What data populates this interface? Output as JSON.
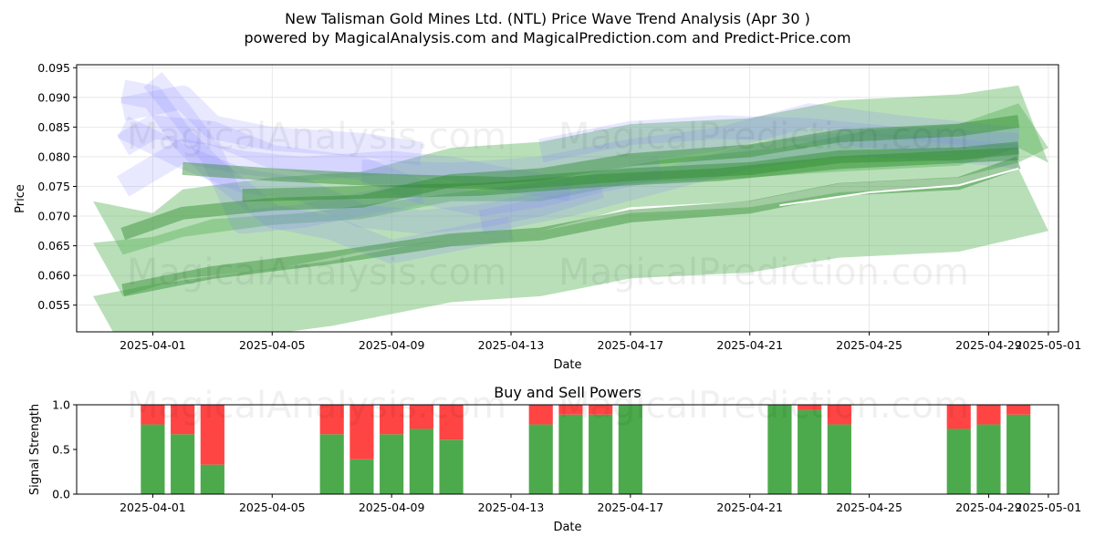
{
  "title_line1": "New Talisman Gold Mines Ltd. (NTL) Price Wave Trend Analysis (Apr 30 )",
  "title_line2": "powered by MagicalAnalysis.com and MagicalPrediction.com and Predict-Price.com",
  "watermarks": [
    "MagicalAnalysis.com",
    "MagicalPrediction.com"
  ],
  "colors": {
    "buy": "#4caa4c",
    "sell": "#ff4444",
    "trend_green": "#2e8b2e",
    "wave_blue": "#8080ff",
    "band_green": "#59b359"
  },
  "chart_data": [
    {
      "type": "area",
      "name": "price-wave-trend",
      "xlabel": "Date",
      "ylabel": "Price",
      "xlim": [
        "2025-03-30",
        "2025-05-01"
      ],
      "ylim": [
        0.0505,
        0.0955
      ],
      "xticks": [
        "2025-04-01",
        "2025-04-05",
        "2025-04-09",
        "2025-04-13",
        "2025-04-17",
        "2025-04-21",
        "2025-04-25",
        "2025-04-29",
        "2025-05-01"
      ],
      "yticks": [
        0.055,
        0.06,
        0.065,
        0.07,
        0.075,
        0.08,
        0.085,
        0.09,
        0.095
      ],
      "ytick_labels": [
        "0.055",
        "0.060",
        "0.065",
        "0.070",
        "0.075",
        "0.080",
        "0.085",
        "0.090",
        "0.095"
      ],
      "grid": true,
      "green_bands": [
        {
          "lower": [
            [
              "2025-03-30",
              0.0725
            ],
            [
              "2025-03-31",
              0.0635
            ],
            [
              "2025-04-02",
              0.0665
            ],
            [
              "2025-04-05",
              0.0685
            ],
            [
              "2025-04-08",
              0.0695
            ],
            [
              "2025-04-11",
              0.0725
            ],
            [
              "2025-04-14",
              0.0725
            ],
            [
              "2025-04-17",
              0.0755
            ],
            [
              "2025-04-21",
              0.0765
            ],
            [
              "2025-04-24",
              0.0775
            ],
            [
              "2025-04-28",
              0.0785
            ],
            [
              "2025-04-30",
              0.0815
            ]
          ],
          "upper": [
            [
              "2025-03-30",
              0.0725
            ],
            [
              "2025-04-01",
              0.0705
            ],
            [
              "2025-04-02",
              0.0745
            ],
            [
              "2025-04-05",
              0.0765
            ],
            [
              "2025-04-08",
              0.0775
            ],
            [
              "2025-04-11",
              0.0815
            ],
            [
              "2025-04-14",
              0.0825
            ],
            [
              "2025-04-17",
              0.0855
            ],
            [
              "2025-04-21",
              0.0865
            ],
            [
              "2025-04-24",
              0.0895
            ],
            [
              "2025-04-28",
              0.0905
            ],
            [
              "2025-04-30",
              0.092
            ],
            [
              "2025-05-01",
              0.079
            ]
          ]
        },
        {
          "lower": [
            [
              "2025-03-30",
              0.0655
            ],
            [
              "2025-03-31",
              0.0565
            ],
            [
              "2025-04-02",
              0.0595
            ],
            [
              "2025-04-05",
              0.061
            ],
            [
              "2025-04-08",
              0.064
            ],
            [
              "2025-04-11",
              0.066
            ],
            [
              "2025-04-14",
              0.0675
            ],
            [
              "2025-04-17",
              0.0715
            ],
            [
              "2025-04-21",
              0.0725
            ],
            [
              "2025-04-24",
              0.0755
            ],
            [
              "2025-04-28",
              0.0765
            ],
            [
              "2025-04-30",
              0.079
            ]
          ],
          "upper": [
            [
              "2025-03-30",
              0.0655
            ],
            [
              "2025-04-01",
              0.0665
            ],
            [
              "2025-04-03",
              0.0695
            ],
            [
              "2025-04-06",
              0.0705
            ],
            [
              "2025-04-09",
              0.0725
            ],
            [
              "2025-04-12",
              0.0745
            ],
            [
              "2025-04-15",
              0.0765
            ],
            [
              "2025-04-18",
              0.0795
            ],
            [
              "2025-04-22",
              0.0815
            ],
            [
              "2025-04-25",
              0.0845
            ],
            [
              "2025-04-28",
              0.0855
            ],
            [
              "2025-04-30",
              0.089
            ],
            [
              "2025-05-01",
              0.0815
            ]
          ]
        },
        {
          "lower": [
            [
              "2025-03-30",
              0.0565
            ],
            [
              "2025-03-31",
              0.0475
            ],
            [
              "2025-04-04",
              0.0495
            ],
            [
              "2025-04-07",
              0.0515
            ],
            [
              "2025-04-11",
              0.0555
            ],
            [
              "2025-04-14",
              0.0565
            ],
            [
              "2025-04-17",
              0.0595
            ],
            [
              "2025-04-21",
              0.0605
            ],
            [
              "2025-04-24",
              0.063
            ],
            [
              "2025-04-28",
              0.064
            ],
            [
              "2025-05-01",
              0.0675
            ]
          ],
          "upper": [
            [
              "2025-03-30",
              0.0565
            ],
            [
              "2025-04-01",
              0.0585
            ],
            [
              "2025-04-04",
              0.0605
            ],
            [
              "2025-04-07",
              0.0625
            ],
            [
              "2025-04-10",
              0.0655
            ],
            [
              "2025-04-14",
              0.0675
            ],
            [
              "2025-04-17",
              0.0705
            ],
            [
              "2025-04-21",
              0.0715
            ],
            [
              "2025-04-24",
              0.074
            ],
            [
              "2025-04-28",
              0.075
            ],
            [
              "2025-04-30",
              0.078
            ],
            [
              "2025-05-01",
              0.0675
            ]
          ]
        }
      ],
      "trend_lines": [
        [
          [
            "2025-03-31",
            0.067
          ],
          [
            "2025-04-02",
            0.0705
          ],
          [
            "2025-04-05",
            0.072
          ],
          [
            "2025-04-08",
            0.0725
          ],
          [
            "2025-04-11",
            0.076
          ],
          [
            "2025-04-14",
            0.077
          ],
          [
            "2025-04-17",
            0.0795
          ],
          [
            "2025-04-21",
            0.081
          ],
          [
            "2025-04-24",
            0.0835
          ],
          [
            "2025-04-28",
            0.0845
          ],
          [
            "2025-04-30",
            0.086
          ]
        ],
        [
          [
            "2025-03-31",
            0.0575
          ],
          [
            "2025-04-03",
            0.0605
          ],
          [
            "2025-04-07",
            0.063
          ],
          [
            "2025-04-11",
            0.066
          ],
          [
            "2025-04-14",
            0.067
          ],
          [
            "2025-04-17",
            0.07
          ],
          [
            "2025-04-21",
            0.0715
          ],
          [
            "2025-04-24",
            0.0745
          ],
          [
            "2025-04-28",
            0.0755
          ],
          [
            "2025-04-30",
            0.079
          ]
        ],
        [
          [
            "2025-04-02",
            0.078
          ],
          [
            "2025-04-05",
            0.077
          ],
          [
            "2025-04-09",
            0.076
          ],
          [
            "2025-04-13",
            0.0755
          ],
          [
            "2025-04-17",
            0.077
          ],
          [
            "2025-04-21",
            0.078
          ],
          [
            "2025-04-24",
            0.08
          ],
          [
            "2025-04-28",
            0.0805
          ],
          [
            "2025-04-30",
            0.0815
          ]
        ],
        [
          [
            "2025-04-04",
            0.0735
          ],
          [
            "2025-04-08",
            0.074
          ],
          [
            "2025-04-12",
            0.0745
          ],
          [
            "2025-04-16",
            0.076
          ],
          [
            "2025-04-20",
            0.077
          ],
          [
            "2025-04-24",
            0.079
          ],
          [
            "2025-04-30",
            0.0805
          ]
        ]
      ],
      "white_line": [
        [
          "2025-04-22",
          0.0718
        ],
        [
          "2025-04-25",
          0.074
        ],
        [
          "2025-04-28",
          0.0752
        ],
        [
          "2025-04-30",
          0.078
        ]
      ],
      "blue_waves": [
        [
          [
            "2025-04-01",
            0.093
          ],
          [
            "2025-04-02",
            0.087
          ],
          [
            "2025-04-03",
            0.08
          ],
          [
            "2025-04-04",
            0.069
          ],
          [
            "2025-04-06",
            0.07
          ],
          [
            "2025-04-08",
            0.072
          ],
          [
            "2025-04-10",
            0.074
          ]
        ],
        [
          [
            "2025-03-31",
            0.088
          ],
          [
            "2025-04-02",
            0.09
          ],
          [
            "2025-04-03",
            0.085
          ],
          [
            "2025-04-05",
            0.083
          ],
          [
            "2025-04-08",
            0.082
          ],
          [
            "2025-04-10",
            0.0805
          ]
        ],
        [
          [
            "2025-03-31",
            0.091
          ],
          [
            "2025-04-01",
            0.09
          ],
          [
            "2025-04-02",
            0.083
          ],
          [
            "2025-04-03",
            0.078
          ],
          [
            "2025-04-05",
            0.07
          ],
          [
            "2025-04-07",
            0.068
          ],
          [
            "2025-04-09",
            0.064
          ],
          [
            "2025-04-11",
            0.066
          ],
          [
            "2025-04-13",
            0.068
          ]
        ],
        [
          [
            "2025-03-31",
            0.075
          ],
          [
            "2025-04-01",
            0.078
          ],
          [
            "2025-04-02",
            0.081
          ],
          [
            "2025-04-04",
            0.079
          ],
          [
            "2025-04-06",
            0.078
          ],
          [
            "2025-04-09",
            0.079
          ],
          [
            "2025-04-11",
            0.078
          ],
          [
            "2025-04-13",
            0.076
          ],
          [
            "2025-04-15",
            0.0745
          ]
        ],
        [
          [
            "2025-03-31",
            0.085
          ],
          [
            "2025-04-02",
            0.08
          ],
          [
            "2025-04-04",
            0.076
          ],
          [
            "2025-04-06",
            0.0745
          ],
          [
            "2025-04-08",
            0.07
          ],
          [
            "2025-04-10",
            0.069
          ],
          [
            "2025-04-12",
            0.07
          ],
          [
            "2025-04-14",
            0.072
          ],
          [
            "2025-04-16",
            0.075
          ]
        ],
        [
          [
            "2025-03-31",
            0.082
          ],
          [
            "2025-04-01",
            0.085
          ],
          [
            "2025-04-03",
            0.084
          ],
          [
            "2025-04-05",
            0.08
          ],
          [
            "2025-04-08",
            0.078
          ],
          [
            "2025-04-10",
            0.074
          ],
          [
            "2025-04-12",
            0.072
          ],
          [
            "2025-04-14",
            0.0735
          ],
          [
            "2025-04-16",
            0.076
          ],
          [
            "2025-04-18",
            0.078
          ]
        ],
        [
          [
            "2025-04-08",
            0.0775
          ],
          [
            "2025-04-11",
            0.077
          ],
          [
            "2025-04-14",
            0.078
          ],
          [
            "2025-04-17",
            0.081
          ],
          [
            "2025-04-20",
            0.083
          ],
          [
            "2025-04-23",
            0.087
          ],
          [
            "2025-04-26",
            0.085
          ],
          [
            "2025-04-30",
            0.083
          ]
        ],
        [
          [
            "2025-04-12",
            0.069
          ],
          [
            "2025-04-15",
            0.072
          ],
          [
            "2025-04-18",
            0.076
          ],
          [
            "2025-04-21",
            0.08
          ],
          [
            "2025-04-24",
            0.082
          ],
          [
            "2025-04-27",
            0.0815
          ],
          [
            "2025-04-30",
            0.08
          ]
        ],
        [
          [
            "2025-04-14",
            0.081
          ],
          [
            "2025-04-17",
            0.084
          ],
          [
            "2025-04-20",
            0.085
          ],
          [
            "2025-04-23",
            0.0845
          ],
          [
            "2025-04-26",
            0.083
          ],
          [
            "2025-04-30",
            0.082
          ]
        ]
      ]
    },
    {
      "type": "bar",
      "name": "buy-sell-powers",
      "title": "Buy and Sell Powers",
      "xlabel": "Date",
      "ylabel": "Signal Strength",
      "xlim": [
        "2025-03-30",
        "2025-05-01"
      ],
      "ylim": [
        0,
        1.0
      ],
      "yticks": [
        0.0,
        0.5,
        1.0
      ],
      "ytick_labels": [
        "0.0",
        "0.5",
        "1.0"
      ],
      "xticks": [
        "2025-04-01",
        "2025-04-05",
        "2025-04-09",
        "2025-04-13",
        "2025-04-17",
        "2025-04-21",
        "2025-04-25",
        "2025-04-29",
        "2025-05-01"
      ],
      "categories": [
        "2025-04-01",
        "2025-04-02",
        "2025-04-03",
        "2025-04-07",
        "2025-04-08",
        "2025-04-09",
        "2025-04-10",
        "2025-04-11",
        "2025-04-14",
        "2025-04-15",
        "2025-04-16",
        "2025-04-17",
        "2025-04-22",
        "2025-04-23",
        "2025-04-24",
        "2025-04-28",
        "2025-04-29",
        "2025-04-30"
      ],
      "series": [
        {
          "name": "Buy",
          "values": [
            0.78,
            0.67,
            0.33,
            0.67,
            0.39,
            0.67,
            0.73,
            0.61,
            0.78,
            0.89,
            0.89,
            1.0,
            1.0,
            0.94,
            0.78,
            0.73,
            0.78,
            0.89
          ]
        },
        {
          "name": "Sell",
          "values": [
            0.22,
            0.33,
            0.67,
            0.33,
            0.61,
            0.33,
            0.27,
            0.39,
            0.22,
            0.11,
            0.11,
            0.0,
            0.0,
            0.06,
            0.22,
            0.27,
            0.22,
            0.11
          ]
        }
      ]
    }
  ]
}
